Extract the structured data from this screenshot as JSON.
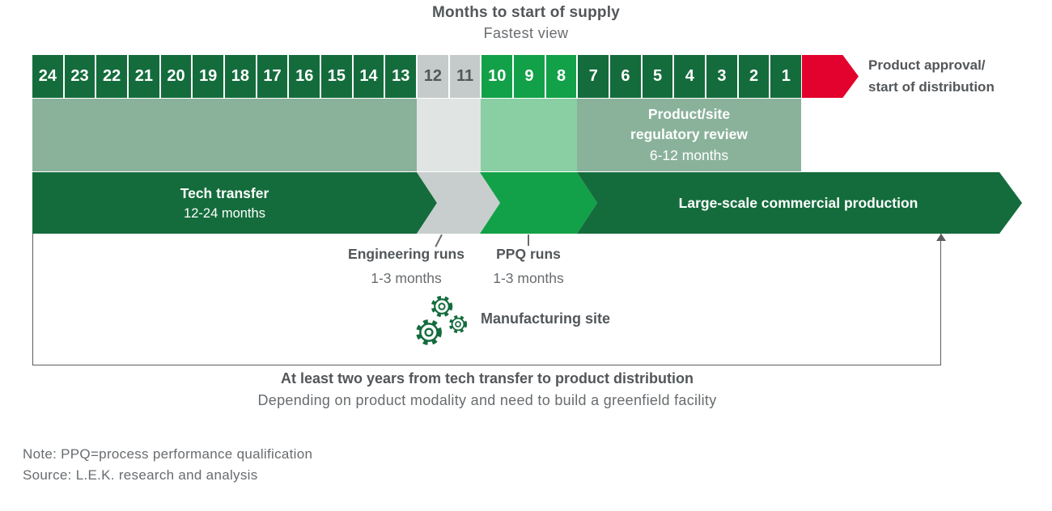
{
  "title": "Months to start of supply",
  "subtitle": "Fastest view",
  "timeline": {
    "months": [
      {
        "n": "24",
        "section": "dark"
      },
      {
        "n": "23",
        "section": "dark"
      },
      {
        "n": "22",
        "section": "dark"
      },
      {
        "n": "21",
        "section": "dark"
      },
      {
        "n": "20",
        "section": "dark"
      },
      {
        "n": "19",
        "section": "dark"
      },
      {
        "n": "18",
        "section": "dark"
      },
      {
        "n": "17",
        "section": "dark"
      },
      {
        "n": "16",
        "section": "dark"
      },
      {
        "n": "15",
        "section": "dark"
      },
      {
        "n": "14",
        "section": "dark"
      },
      {
        "n": "13",
        "section": "dark"
      },
      {
        "n": "12",
        "section": "gray"
      },
      {
        "n": "11",
        "section": "gray"
      },
      {
        "n": "10",
        "section": "bright"
      },
      {
        "n": "9",
        "section": "bright"
      },
      {
        "n": "8",
        "section": "bright"
      },
      {
        "n": "7",
        "section": "dark2"
      },
      {
        "n": "6",
        "section": "dark2"
      },
      {
        "n": "5",
        "section": "dark2"
      },
      {
        "n": "4",
        "section": "dark2"
      },
      {
        "n": "3",
        "section": "dark2"
      },
      {
        "n": "2",
        "section": "dark2"
      },
      {
        "n": "1",
        "section": "dark2"
      }
    ],
    "end_marker": {
      "line1": "Product approval/",
      "line2": "start of distribution"
    }
  },
  "regulatory_review": {
    "line1": "Product/site",
    "line2": "regulatory review",
    "duration": "6-12 months"
  },
  "phases": {
    "tech_transfer": {
      "label": "Tech transfer",
      "duration": "12-24 months"
    },
    "engineering_runs": {
      "label": "Engineering runs",
      "duration": "1-3 months"
    },
    "ppq_runs": {
      "label": "PPQ runs",
      "duration": "1-3 months"
    },
    "production": {
      "label": "Large-scale commercial production"
    }
  },
  "manufacturing_site": {
    "label": "Manufacturing site"
  },
  "bracket": {
    "heading": "At least two years from tech transfer to product distribution",
    "subheading": "Depending on product modality and need to build a greenfield facility"
  },
  "footnotes": {
    "note": "Note: PPQ=process performance qualification",
    "source": "Source: L.E.K. research and analysis"
  },
  "colors": {
    "dark_green": "#146C3C",
    "bright_green": "#12A148",
    "gray_box": "#C5CBCA",
    "red": "#E3022D",
    "sage": "#8AB29B",
    "band_gray": "#E0E5E3",
    "band_green": "#89CFA3",
    "chevron_gray": "#C8CECD",
    "text_dark": "#53575A",
    "text_gray": "#686C6F"
  }
}
